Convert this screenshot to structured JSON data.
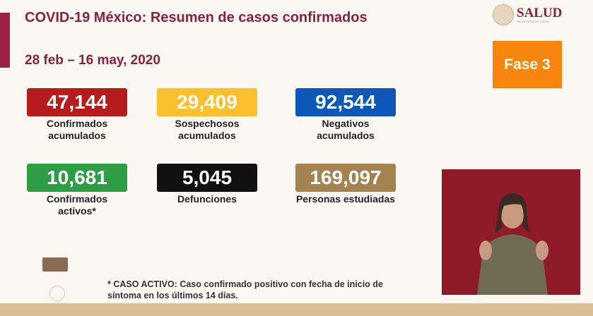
{
  "header": {
    "title": "COVID-19 México: Resumen de casos confirmados",
    "date_range": "28 feb – 16 may, 2020",
    "logo_text": "SALUD",
    "logo_subtext": "SECRETARÍA DE SALUD",
    "phase": "Fase 3"
  },
  "stats": [
    {
      "value": "47,144",
      "label": "Confirmados acumulados",
      "color": "#b71c1c"
    },
    {
      "value": "29,409",
      "label": "Sospechosos acumulados",
      "color": "#fbc02d"
    },
    {
      "value": "92,544",
      "label": "Negativos acumulados",
      "color": "#0d57b8"
    },
    {
      "value": "10,681",
      "label": "Confirmados activos*",
      "color": "#2e9e44"
    },
    {
      "value": "5,045",
      "label": "Defunciones",
      "color": "#111111"
    },
    {
      "value": "169,097",
      "label": "Personas estudiadas",
      "color": "#a48350"
    }
  ],
  "footnote": "* CASO ACTIVO: Caso confirmado positivo con fecha de inicio de síntoma en los últimos 14 días."
}
